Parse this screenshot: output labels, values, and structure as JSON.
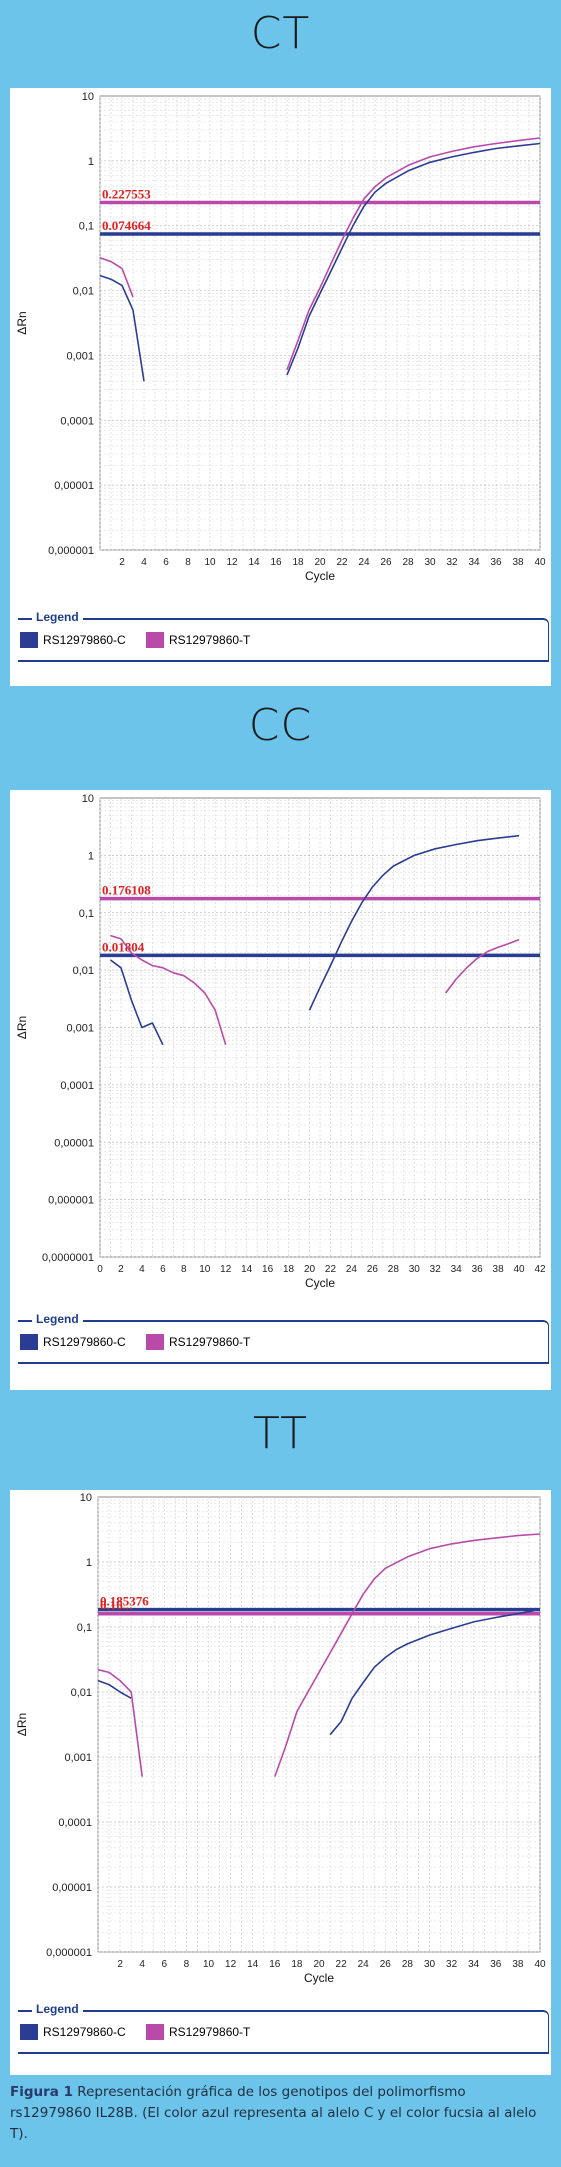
{
  "colors": {
    "C": "#2b3d93",
    "T": "#b94aa9",
    "threshold_label": "#e02020"
  },
  "charts": [
    {
      "title": "CT",
      "ylabel": "ΔRn",
      "xlabel": "Cycle",
      "y_ticks": [
        "10",
        "1",
        "0,1",
        "0,01",
        "0,001",
        "0,0001",
        "0,00001",
        "0,000001"
      ],
      "x_ticks": [
        "2",
        "4",
        "6",
        "8",
        "10",
        "12",
        "14",
        "16",
        "18",
        "20",
        "22",
        "24",
        "26",
        "28",
        "30",
        "32",
        "34",
        "36",
        "38",
        "40"
      ],
      "thresholds": [
        {
          "label": "0.227553",
          "series": "T",
          "value": 0.227553
        },
        {
          "label": "0.074664",
          "series": "C",
          "value": 0.074664
        }
      ],
      "legend_title": "Legend",
      "legend": [
        "RS12979860-C",
        "RS12979860-T"
      ]
    },
    {
      "title": "CC",
      "ylabel": "ΔRn",
      "xlabel": "Cycle",
      "y_ticks": [
        "10",
        "1",
        "0,1",
        "0,01",
        "0,001",
        "0,0001",
        "0,00001",
        "0,000001",
        "0,0000001"
      ],
      "x_ticks": [
        "0",
        "2",
        "4",
        "6",
        "8",
        "10",
        "12",
        "14",
        "16",
        "18",
        "20",
        "22",
        "24",
        "26",
        "28",
        "30",
        "32",
        "34",
        "36",
        "38",
        "40",
        "42"
      ],
      "thresholds": [
        {
          "label": "0.176108",
          "series": "T",
          "value": 0.176108
        },
        {
          "label": "0.01804",
          "series": "C",
          "value": 0.01804
        }
      ],
      "legend_title": "Legend",
      "legend": [
        "RS12979860-C",
        "RS12979860-T"
      ]
    },
    {
      "title": "TT",
      "ylabel": "ΔRn",
      "xlabel": "Cycle",
      "y_ticks": [
        "10",
        "1",
        "0,1",
        "0,01",
        "0,001",
        "0,0001",
        "0,00001",
        "0,000001"
      ],
      "x_ticks": [
        "2",
        "4",
        "6",
        "8",
        "10",
        "12",
        "14",
        "16",
        "18",
        "20",
        "22",
        "24",
        "26",
        "28",
        "30",
        "32",
        "34",
        "36",
        "38",
        "40"
      ],
      "thresholds": [
        {
          "label": "0.185376",
          "series": "C",
          "value": 0.185376
        },
        {
          "label": "0.16...",
          "series": "T",
          "value": 0.16
        }
      ],
      "legend_title": "Legend",
      "legend": [
        "RS12979860-C",
        "RS12979860-T"
      ]
    }
  ],
  "chart_data": [
    {
      "type": "line",
      "title": "CT",
      "xlabel": "Cycle",
      "ylabel": "ΔRn",
      "yscale": "log",
      "xlim": [
        0,
        40
      ],
      "ylim": [
        1e-06,
        10
      ],
      "series": [
        {
          "name": "RS12979860-C",
          "segments": [
            {
              "x": [
                0,
                1,
                2,
                3,
                4
              ],
              "y": [
                0.017,
                0.015,
                0.012,
                0.005,
                0.0004
              ]
            },
            {
              "x": [
                17,
                18,
                19,
                20,
                21,
                22,
                23,
                24,
                25,
                26,
                28,
                30,
                32,
                34,
                36,
                38,
                40
              ],
              "y": [
                0.0005,
                0.0013,
                0.004,
                0.009,
                0.02,
                0.045,
                0.1,
                0.2,
                0.33,
                0.45,
                0.7,
                0.95,
                1.15,
                1.35,
                1.55,
                1.7,
                1.85
              ]
            }
          ]
        },
        {
          "name": "RS12979860-T",
          "segments": [
            {
              "x": [
                0,
                1,
                2,
                3
              ],
              "y": [
                0.032,
                0.028,
                0.022,
                0.008
              ]
            },
            {
              "x": [
                17,
                18,
                19,
                20,
                21,
                22,
                23,
                24,
                25,
                26,
                28,
                30,
                32,
                34,
                36,
                38,
                40
              ],
              "y": [
                0.0006,
                0.0017,
                0.005,
                0.011,
                0.026,
                0.06,
                0.13,
                0.26,
                0.4,
                0.55,
                0.85,
                1.15,
                1.4,
                1.65,
                1.85,
                2.05,
                2.25
              ]
            }
          ]
        }
      ]
    },
    {
      "type": "line",
      "title": "CC",
      "xlabel": "Cycle",
      "ylabel": "ΔRn",
      "yscale": "log",
      "xlim": [
        0,
        42
      ],
      "ylim": [
        1e-07,
        10
      ],
      "series": [
        {
          "name": "RS12979860-C",
          "segments": [
            {
              "x": [
                1,
                2,
                3,
                4,
                5,
                6
              ],
              "y": [
                0.015,
                0.011,
                0.003,
                0.001,
                0.0012,
                0.0005
              ]
            },
            {
              "x": [
                20,
                21,
                22,
                23,
                24,
                25,
                26,
                27,
                28,
                30,
                32,
                34,
                36,
                38,
                40
              ],
              "y": [
                0.002,
                0.005,
                0.012,
                0.03,
                0.07,
                0.15,
                0.28,
                0.45,
                0.65,
                1.0,
                1.3,
                1.55,
                1.8,
                2.0,
                2.2
              ]
            }
          ]
        },
        {
          "name": "RS12979860-T",
          "segments": [
            {
              "x": [
                1,
                2,
                3,
                4,
                5,
                6,
                7,
                8,
                9,
                10,
                11,
                12
              ],
              "y": [
                0.04,
                0.035,
                0.02,
                0.015,
                0.012,
                0.011,
                0.009,
                0.008,
                0.006,
                0.004,
                0.002,
                0.0005
              ]
            },
            {
              "x": [
                33,
                34,
                35,
                36,
                37,
                38,
                39,
                40
              ],
              "y": [
                0.004,
                0.007,
                0.011,
                0.016,
                0.021,
                0.025,
                0.029,
                0.034
              ]
            }
          ]
        }
      ]
    },
    {
      "type": "line",
      "title": "TT",
      "xlabel": "Cycle",
      "ylabel": "ΔRn",
      "yscale": "log",
      "xlim": [
        0,
        40
      ],
      "ylim": [
        1e-06,
        10
      ],
      "series": [
        {
          "name": "RS12979860-C",
          "segments": [
            {
              "x": [
                0,
                1,
                2,
                3
              ],
              "y": [
                0.015,
                0.013,
                0.01,
                0.008
              ]
            },
            {
              "x": [
                21,
                22,
                23,
                24,
                25,
                26,
                27,
                28,
                30,
                32,
                34,
                36,
                38,
                40
              ],
              "y": [
                0.0022,
                0.0035,
                0.008,
                0.014,
                0.024,
                0.034,
                0.045,
                0.055,
                0.075,
                0.095,
                0.12,
                0.14,
                0.16,
                0.185
              ]
            }
          ]
        },
        {
          "name": "RS12979860-T",
          "segments": [
            {
              "x": [
                0,
                1,
                2,
                3,
                4
              ],
              "y": [
                0.022,
                0.02,
                0.015,
                0.01,
                0.0005
              ]
            },
            {
              "x": [
                16,
                17,
                18,
                19,
                20,
                21,
                22,
                23,
                24,
                25,
                26,
                28,
                30,
                32,
                34,
                36,
                38,
                40
              ],
              "y": [
                0.0005,
                0.0015,
                0.005,
                0.01,
                0.02,
                0.04,
                0.08,
                0.16,
                0.32,
                0.55,
                0.8,
                1.2,
                1.6,
                1.9,
                2.15,
                2.35,
                2.55,
                2.7
              ]
            }
          ]
        }
      ]
    }
  ],
  "caption": {
    "label": "Figura 1",
    "text": " Representación gráfica de los genotipos del polimorfismo rs12979860 IL28B. (El color azul representa al alelo C y el color fucsia al alelo T)."
  }
}
